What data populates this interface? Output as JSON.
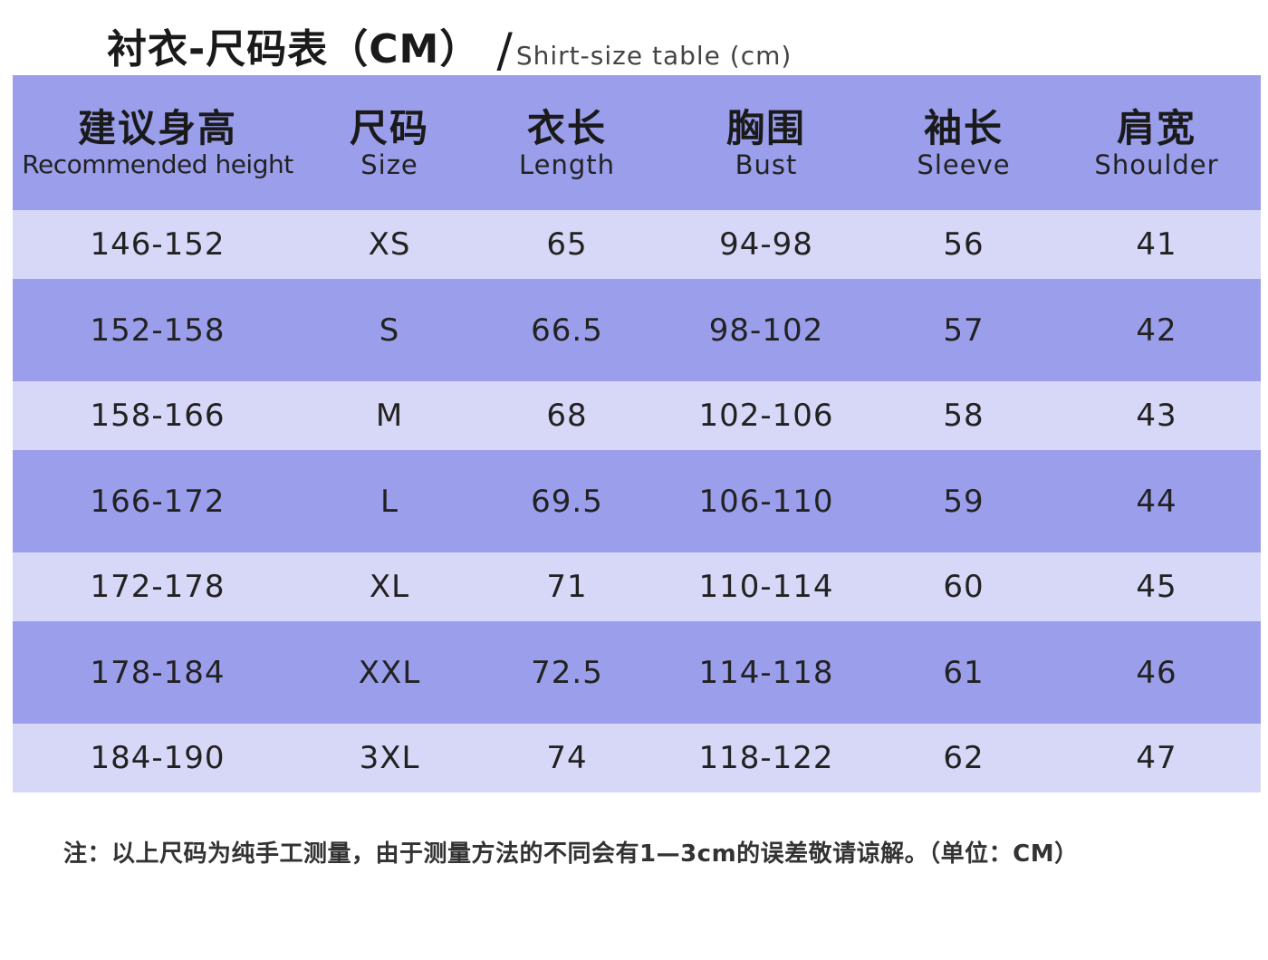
{
  "title": {
    "cn": "衬衣-尺码表（CM）",
    "slash": "/",
    "en": "Shirt-size table (cm)"
  },
  "table": {
    "headers": [
      {
        "cn": "建议身高",
        "en": "Recommended height"
      },
      {
        "cn": "尺码",
        "en": "Size"
      },
      {
        "cn": "衣长",
        "en": "Length"
      },
      {
        "cn": "胸围",
        "en": "Bust"
      },
      {
        "cn": "袖长",
        "en": "Sleeve"
      },
      {
        "cn": "肩宽",
        "en": "Shoulder"
      }
    ],
    "rows": [
      [
        "146-152",
        "XS",
        "65",
        "94-98",
        "56",
        "41"
      ],
      [
        "152-158",
        "S",
        "66.5",
        "98-102",
        "57",
        "42"
      ],
      [
        "158-166",
        "M",
        "68",
        "102-106",
        "58",
        "43"
      ],
      [
        "166-172",
        "L",
        "69.5",
        "106-110",
        "59",
        "44"
      ],
      [
        "172-178",
        "XL",
        "71",
        "110-114",
        "60",
        "45"
      ],
      [
        "178-184",
        "XXL",
        "72.5",
        "114-118",
        "61",
        "46"
      ],
      [
        "184-190",
        "3XL",
        "74",
        "118-122",
        "62",
        "47"
      ]
    ]
  },
  "footnote": "注：以上尺码为纯手工测量，由于测量方法的不同会有1—3cm的误差敬请谅解。（单位：CM）",
  "colors": {
    "header_bg": "#9b9eeb",
    "row_light": "#d7d7f7",
    "row_dark": "#9b9eeb"
  }
}
